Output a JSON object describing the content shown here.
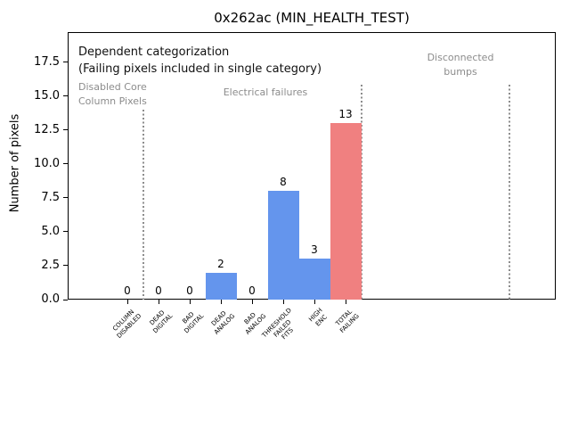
{
  "chart_data": {
    "type": "bar",
    "title": "0x262ac (MIN_HEALTH_TEST)",
    "xlabel": "",
    "ylabel": "Number of pixels",
    "categories": [
      "COLUMN\nDISABLED",
      "DEAD\nDIGITAL",
      "BAD\nDIGITAL",
      "DEAD\nANALOG",
      "BAD\nANALOG",
      "THRESHOLD\nFAILED\nFITS",
      "HIGH\nENC",
      "TOTAL\nFAILING"
    ],
    "values": [
      0,
      0,
      0,
      2,
      0,
      8,
      3,
      13
    ],
    "bar_value_labels": [
      "0",
      "0",
      "0",
      "2",
      "0",
      "8",
      "3",
      "13"
    ],
    "bar_colors": [
      "#6495ED",
      "#6495ED",
      "#6495ED",
      "#6495ED",
      "#6495ED",
      "#6495ED",
      "#6495ED",
      "#F08080"
    ],
    "ytick_values": [
      0,
      2.5,
      5,
      7.5,
      10,
      12.5,
      15,
      17.5
    ],
    "ytick_labels": [
      "0.0",
      "2.5",
      "5.0",
      "7.5",
      "10.0",
      "12.5",
      "15.0",
      "17.5"
    ],
    "ylim": [
      0,
      19.7
    ],
    "xtick_rotation_deg": 45,
    "grid": false,
    "legend": null,
    "separators": {
      "style": "dotted",
      "color": "#8c8c8c",
      "x_positions": [
        0.5,
        7.5,
        12.27
      ],
      "top_values": [
        14.0,
        15.8,
        15.8
      ]
    },
    "annotations": {
      "note_line1": "Dependent categorization",
      "note_line2": "(Failing pixels included in single category)",
      "region_disabled": "Disabled Core\nColumn Pixels",
      "region_electrical": "Electrical failures",
      "region_disconnected": "Disconnected\nbumps"
    },
    "colors": {
      "bar_blue": "#6495ED",
      "bar_red": "#F08080",
      "annotation_black": "#111111",
      "annotation_gray": "#8c8c8c",
      "axis": "#000000",
      "background": "#ffffff"
    }
  }
}
